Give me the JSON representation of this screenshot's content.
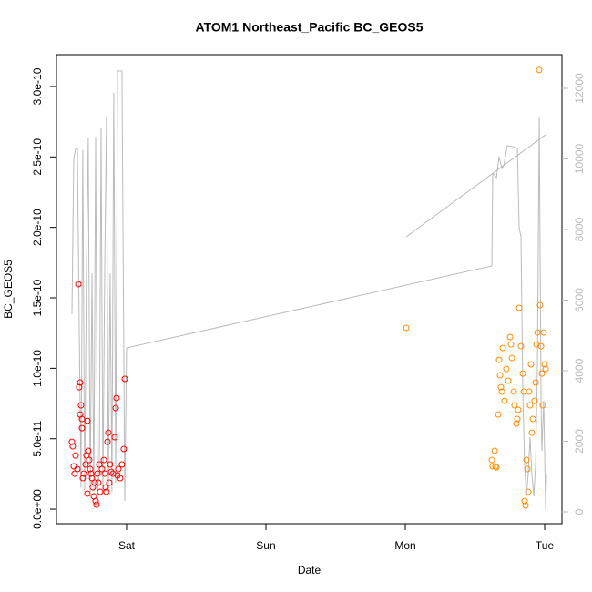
{
  "chart_data": {
    "type": "scatter",
    "title": "ATOM1 Northeast_Pacific BC_GEOS5",
    "x_label": "Date",
    "y_label": "BC_GEOS5",
    "xlim": [
      -0.503,
      3.124
    ],
    "xticks": [
      {
        "value": 0,
        "label": "Sat"
      },
      {
        "value": 1,
        "label": "Sun"
      },
      {
        "value": 2,
        "label": "Mon"
      },
      {
        "value": 3,
        "label": "Tue"
      }
    ],
    "ylim": [
      -1.03e-11,
      3.226e-10
    ],
    "yticks": [
      {
        "value": 0,
        "label": "0.0e+00"
      },
      {
        "value": 5e-11,
        "label": "5.0e-11"
      },
      {
        "value": 1e-10,
        "label": "1.0e-10"
      },
      {
        "value": 1.5e-10,
        "label": "1.5e-10"
      },
      {
        "value": 2e-10,
        "label": "2.0e-10"
      },
      {
        "value": 2.5e-10,
        "label": "2.5e-10"
      },
      {
        "value": 3e-10,
        "label": "3.0e-10"
      }
    ],
    "y2lim": [
      -335,
      12955
    ],
    "y2ticks": [
      0,
      2000,
      4000,
      6000,
      8000,
      10000,
      12000
    ],
    "y2_color": "#bbbbbb",
    "grid": false,
    "series": [
      {
        "color": "#ff0000",
        "x": [
          -0.392,
          -0.386,
          -0.379,
          -0.373,
          -0.366,
          -0.353,
          -0.346,
          -0.34,
          -0.333,
          -0.333,
          -0.327,
          -0.32,
          -0.32,
          -0.314,
          -0.307,
          -0.294,
          -0.288,
          -0.281,
          -0.281,
          -0.275,
          -0.268,
          -0.261,
          -0.255,
          -0.248,
          -0.242,
          -0.235,
          -0.229,
          -0.222,
          -0.216,
          -0.209,
          -0.203,
          -0.196,
          -0.19,
          -0.176,
          -0.163,
          -0.157,
          -0.15,
          -0.144,
          -0.137,
          -0.131,
          -0.124,
          -0.118,
          -0.111,
          -0.098,
          -0.085,
          -0.078,
          -0.072,
          -0.065,
          -0.059,
          -0.046,
          -0.033,
          -0.02,
          -0.013
        ],
        "values": [
          4.78e-11,
          4.46e-11,
          3.04e-11,
          2.52e-11,
          3.81e-11,
          2.85e-11,
          1.597e-10,
          8.66e-11,
          8.99e-11,
          6.72e-11,
          7.37e-11,
          6.4e-11,
          5.75e-11,
          2.2e-11,
          2.52e-11,
          3.17e-11,
          3.81e-11,
          1.1e-11,
          6.27e-11,
          4.14e-11,
          3.49e-11,
          2.85e-11,
          2.52e-11,
          2.2e-11,
          1.55e-11,
          9.1e-12,
          1.88e-11,
          5.8e-12,
          3.2e-12,
          2.52e-11,
          1.88e-11,
          3.17e-11,
          1.23e-11,
          2.85e-11,
          3.49e-11,
          2.52e-11,
          1.55e-11,
          1.23e-11,
          4.78e-11,
          5.43e-11,
          1.88e-11,
          3.17e-11,
          2.65e-11,
          2.52e-11,
          5.11e-11,
          7.18e-11,
          7.89e-11,
          2.39e-11,
          2.85e-11,
          2.2e-11,
          3.17e-11,
          4.27e-11,
          9.25e-11
        ]
      },
      {
        "color": "#ff8c00",
        "x": [
          2.007,
          2.621,
          2.627,
          2.641,
          2.647,
          2.654,
          2.667,
          2.673,
          2.68,
          2.686,
          2.693,
          2.699,
          2.712,
          2.725,
          2.739,
          2.752,
          2.758,
          2.765,
          2.778,
          2.784,
          2.797,
          2.804,
          2.81,
          2.817,
          2.83,
          2.843,
          2.85,
          2.856,
          2.863,
          2.869,
          2.876,
          2.882,
          2.889,
          2.895,
          2.902,
          2.908,
          2.915,
          2.928,
          2.935,
          2.941,
          2.948,
          2.961,
          2.967,
          2.974,
          2.98,
          2.987,
          2.993,
          3.0,
          3.007
        ],
        "values": [
          1.287e-10,
          3.49e-11,
          3.04e-11,
          4.14e-11,
          3.04e-11,
          2.97e-11,
          6.72e-11,
          1.06e-10,
          9.51e-11,
          8.66e-11,
          8.34e-11,
          1.144e-10,
          7.69e-11,
          9.96e-11,
          9.12e-11,
          1.222e-10,
          1.17e-10,
          1.073e-10,
          8.34e-11,
          7.37e-11,
          6.08e-11,
          6.4e-11,
          7.05e-11,
          1.429e-10,
          1.157e-10,
          9.63e-11,
          8.34e-11,
          5.8e-12,
          2.6e-12,
          3.49e-11,
          2.85e-11,
          1.23e-11,
          8.34e-11,
          7.37e-11,
          1.028e-10,
          5.43e-11,
          6.4e-11,
          7.69e-11,
          8.99e-11,
          1.17e-10,
          1.254e-10,
          3.117e-10,
          1.448e-10,
          1.157e-10,
          9.63e-11,
          7.37e-11,
          1.254e-10,
          1.028e-10,
          9.96e-11
        ]
      },
      {
        "type": "line",
        "axis": "y2",
        "color": "#bbbbbb",
        "x": [
          -0.392,
          -0.379,
          -0.366,
          -0.353,
          -0.34,
          -0.327,
          -0.314,
          -0.301,
          -0.288,
          -0.275,
          -0.261,
          -0.248,
          -0.235,
          -0.222,
          -0.209,
          -0.196,
          -0.183,
          -0.17,
          -0.157,
          -0.144,
          -0.131,
          -0.118,
          -0.105,
          -0.092,
          -0.078,
          -0.065,
          -0.033,
          -0.013,
          0.0,
          2.621,
          2.627,
          2.654,
          2.673,
          2.693,
          2.706,
          2.732,
          2.771,
          2.804,
          2.817,
          2.83,
          2.843,
          2.856,
          2.869,
          2.882,
          2.895,
          2.908,
          2.922,
          2.935,
          2.948,
          2.961,
          2.974,
          2.98,
          2.993,
          3.007,
          3.013,
          null,
          2.007,
          3.007
        ],
        "values": [
          5601,
          9989,
          10298,
          10298,
          5343,
          697,
          10247,
          568,
          6762,
          10582,
          568,
          6762,
          568,
          10634,
          568,
          1084,
          10892,
          568,
          6762,
          11202,
          568,
          6762,
          568,
          11873,
          826,
          12492,
          12492,
          310,
          4646,
          6969,
          9601,
          9472,
          10066,
          9730,
          9808,
          10376,
          10350,
          10298,
          8053,
          7795,
          3407,
          1342,
          439,
          1084,
          2116,
          1084,
          439,
          1342,
          4181,
          11202,
          3149,
          1729,
          3149,
          52,
          1084,
          null,
          7795,
          10685
        ]
      }
    ]
  }
}
